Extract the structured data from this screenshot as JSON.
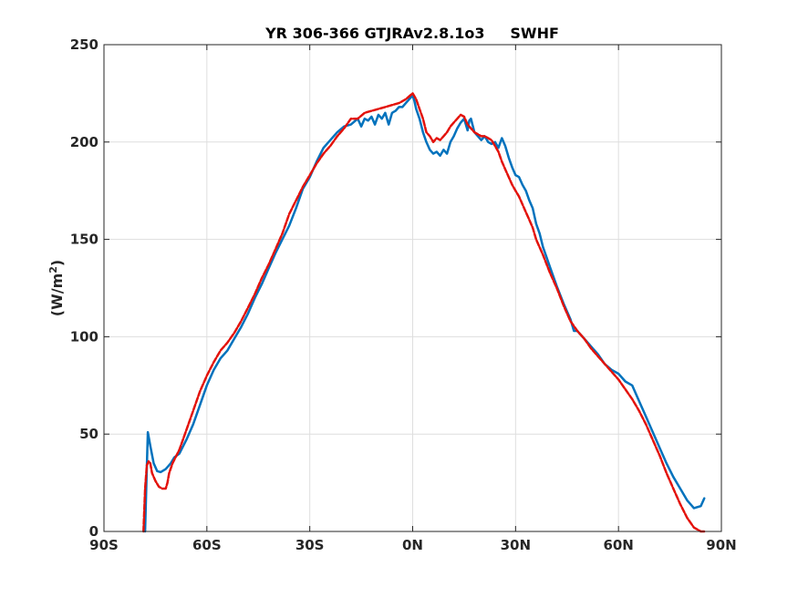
{
  "chart_data": {
    "type": "line",
    "title": "YR 306-366 GTJRAv2.8.1o3     SWHF",
    "xlabel": "",
    "ylabel": "(W/m",
    "ylabel_sup": "2",
    "ylabel_close": ")",
    "xlim": [
      -90,
      90
    ],
    "ylim": [
      0,
      250
    ],
    "grid": true,
    "x_ticks": [
      {
        "value": -90,
        "label": "90S"
      },
      {
        "value": -60,
        "label": "60S"
      },
      {
        "value": -30,
        "label": "30S"
      },
      {
        "value": 0,
        "label": "0N"
      },
      {
        "value": 30,
        "label": "30N"
      },
      {
        "value": 60,
        "label": "60N"
      },
      {
        "value": 90,
        "label": "90N"
      }
    ],
    "y_ticks": [
      {
        "value": 0,
        "label": "0"
      },
      {
        "value": 50,
        "label": "50"
      },
      {
        "value": 100,
        "label": "100"
      },
      {
        "value": 150,
        "label": "150"
      },
      {
        "value": 200,
        "label": "200"
      },
      {
        "value": 250,
        "label": "250"
      }
    ],
    "series": [
      {
        "color": "#0072BD",
        "style": "solid",
        "points": [
          [
            -78,
            0
          ],
          [
            -77.5,
            33
          ],
          [
            -77.2,
            51
          ],
          [
            -76.5,
            44
          ],
          [
            -75.5,
            35
          ],
          [
            -74.5,
            31
          ],
          [
            -73.5,
            30.5
          ],
          [
            -72,
            32
          ],
          [
            -70.5,
            35
          ],
          [
            -69.5,
            38
          ],
          [
            -68,
            40
          ],
          [
            -66,
            47
          ],
          [
            -64,
            55
          ],
          [
            -62,
            65
          ],
          [
            -60,
            75
          ],
          [
            -58,
            83
          ],
          [
            -56,
            89
          ],
          [
            -54,
            93
          ],
          [
            -52,
            99
          ],
          [
            -50,
            105
          ],
          [
            -48,
            112
          ],
          [
            -46,
            120
          ],
          [
            -44,
            127
          ],
          [
            -42,
            135
          ],
          [
            -40,
            143
          ],
          [
            -38,
            150
          ],
          [
            -36,
            157
          ],
          [
            -34,
            166
          ],
          [
            -32,
            176
          ],
          [
            -30,
            182
          ],
          [
            -28,
            190
          ],
          [
            -26,
            197
          ],
          [
            -24,
            201
          ],
          [
            -22,
            205
          ],
          [
            -20,
            208
          ],
          [
            -18,
            209
          ],
          [
            -16,
            212
          ],
          [
            -15,
            208
          ],
          [
            -14,
            212
          ],
          [
            -13,
            211
          ],
          [
            -12,
            213
          ],
          [
            -11,
            209
          ],
          [
            -10,
            214
          ],
          [
            -9,
            212
          ],
          [
            -8,
            215
          ],
          [
            -7,
            209
          ],
          [
            -6,
            215
          ],
          [
            -5,
            216
          ],
          [
            -4,
            218
          ],
          [
            -3,
            218
          ],
          [
            -2,
            220
          ],
          [
            -1,
            222
          ],
          [
            0,
            224
          ],
          [
            0.5,
            221
          ],
          [
            1,
            217
          ],
          [
            2,
            212
          ],
          [
            3,
            205
          ],
          [
            4,
            200
          ],
          [
            5,
            196
          ],
          [
            6,
            194
          ],
          [
            7,
            195
          ],
          [
            8,
            193
          ],
          [
            9,
            196
          ],
          [
            10,
            194
          ],
          [
            11,
            200
          ],
          [
            12,
            203
          ],
          [
            13,
            207
          ],
          [
            14,
            210
          ],
          [
            15,
            212
          ],
          [
            16,
            206
          ],
          [
            16.5,
            211
          ],
          [
            17,
            212
          ],
          [
            18,
            205
          ],
          [
            19,
            203
          ],
          [
            20,
            201
          ],
          [
            21,
            203
          ],
          [
            22,
            200
          ],
          [
            23,
            199
          ],
          [
            24,
            200
          ],
          [
            25,
            197
          ],
          [
            26,
            202
          ],
          [
            27,
            198
          ],
          [
            28,
            192
          ],
          [
            29,
            187
          ],
          [
            30,
            183
          ],
          [
            31,
            182
          ],
          [
            32,
            178
          ],
          [
            33,
            175
          ],
          [
            34,
            170
          ],
          [
            35,
            166
          ],
          [
            36,
            158
          ],
          [
            37,
            153
          ],
          [
            38,
            146
          ],
          [
            40,
            136
          ],
          [
            42,
            126
          ],
          [
            44,
            117
          ],
          [
            46,
            109
          ],
          [
            47,
            103
          ],
          [
            48,
            103
          ],
          [
            50,
            99
          ],
          [
            52,
            95
          ],
          [
            54,
            91
          ],
          [
            56,
            86
          ],
          [
            58,
            83
          ],
          [
            60,
            81
          ],
          [
            62,
            77
          ],
          [
            64,
            75
          ],
          [
            66,
            67
          ],
          [
            68,
            59
          ],
          [
            70,
            51
          ],
          [
            72,
            43
          ],
          [
            74,
            35
          ],
          [
            76,
            28
          ],
          [
            78,
            22
          ],
          [
            80,
            16
          ],
          [
            82,
            12
          ],
          [
            84,
            13
          ],
          [
            85,
            17
          ]
        ]
      },
      {
        "color": "#E3120B",
        "style": "dashed",
        "points": [
          [
            -78.5,
            0
          ],
          [
            -78,
            22
          ],
          [
            -77.5,
            34
          ],
          [
            -77,
            36
          ],
          [
            -76.5,
            35
          ],
          [
            -76,
            30
          ],
          [
            -75,
            26
          ],
          [
            -74,
            23
          ],
          [
            -73,
            22
          ],
          [
            -72,
            22
          ],
          [
            -71.5,
            25
          ],
          [
            -71,
            30
          ],
          [
            -70,
            35
          ],
          [
            -68,
            42
          ],
          [
            -66,
            52
          ],
          [
            -64,
            62
          ],
          [
            -62,
            72
          ],
          [
            -60,
            80
          ],
          [
            -58,
            87
          ],
          [
            -56,
            93
          ],
          [
            -54,
            97
          ],
          [
            -52,
            102
          ],
          [
            -50,
            108
          ],
          [
            -48,
            115
          ],
          [
            -46,
            122
          ],
          [
            -44,
            130
          ],
          [
            -42,
            137
          ],
          [
            -40,
            145
          ],
          [
            -38,
            153
          ],
          [
            -36,
            163
          ],
          [
            -34,
            170
          ],
          [
            -32,
            177
          ],
          [
            -30,
            183
          ],
          [
            -28,
            189
          ],
          [
            -26,
            194
          ],
          [
            -24,
            198
          ],
          [
            -22,
            203
          ],
          [
            -20,
            207
          ],
          [
            -18,
            212
          ],
          [
            -16,
            212
          ],
          [
            -14,
            215
          ],
          [
            -12,
            216
          ],
          [
            -10,
            217
          ],
          [
            -8,
            218
          ],
          [
            -6,
            219
          ],
          [
            -4,
            220
          ],
          [
            -2,
            222
          ],
          [
            0,
            225
          ],
          [
            1,
            222
          ],
          [
            2,
            217
          ],
          [
            3,
            212
          ],
          [
            4,
            205
          ],
          [
            5,
            203
          ],
          [
            6,
            200
          ],
          [
            7,
            202
          ],
          [
            8,
            201
          ],
          [
            9,
            203
          ],
          [
            10,
            205
          ],
          [
            11,
            208
          ],
          [
            12,
            210
          ],
          [
            13,
            212
          ],
          [
            14,
            214
          ],
          [
            15,
            213
          ],
          [
            16,
            209
          ],
          [
            17,
            207
          ],
          [
            18,
            205
          ],
          [
            19,
            204
          ],
          [
            20,
            203
          ],
          [
            21,
            203
          ],
          [
            22,
            202
          ],
          [
            23,
            201
          ],
          [
            24,
            198
          ],
          [
            25,
            195
          ],
          [
            26,
            190
          ],
          [
            27,
            186
          ],
          [
            28,
            182
          ],
          [
            29,
            178
          ],
          [
            30,
            175
          ],
          [
            31,
            172
          ],
          [
            32,
            168
          ],
          [
            33,
            164
          ],
          [
            34,
            160
          ],
          [
            35,
            156
          ],
          [
            36,
            150
          ],
          [
            38,
            142
          ],
          [
            40,
            133
          ],
          [
            42,
            125
          ],
          [
            44,
            116
          ],
          [
            46,
            108
          ],
          [
            48,
            103
          ],
          [
            50,
            99
          ],
          [
            52,
            94
          ],
          [
            54,
            90
          ],
          [
            56,
            86
          ],
          [
            58,
            82
          ],
          [
            60,
            78
          ],
          [
            62,
            73
          ],
          [
            64,
            68
          ],
          [
            66,
            62
          ],
          [
            68,
            55
          ],
          [
            70,
            47
          ],
          [
            72,
            39
          ],
          [
            74,
            30
          ],
          [
            76,
            22
          ],
          [
            78,
            14
          ],
          [
            80,
            7
          ],
          [
            82,
            2
          ],
          [
            84,
            0
          ],
          [
            85,
            0
          ]
        ]
      }
    ]
  }
}
